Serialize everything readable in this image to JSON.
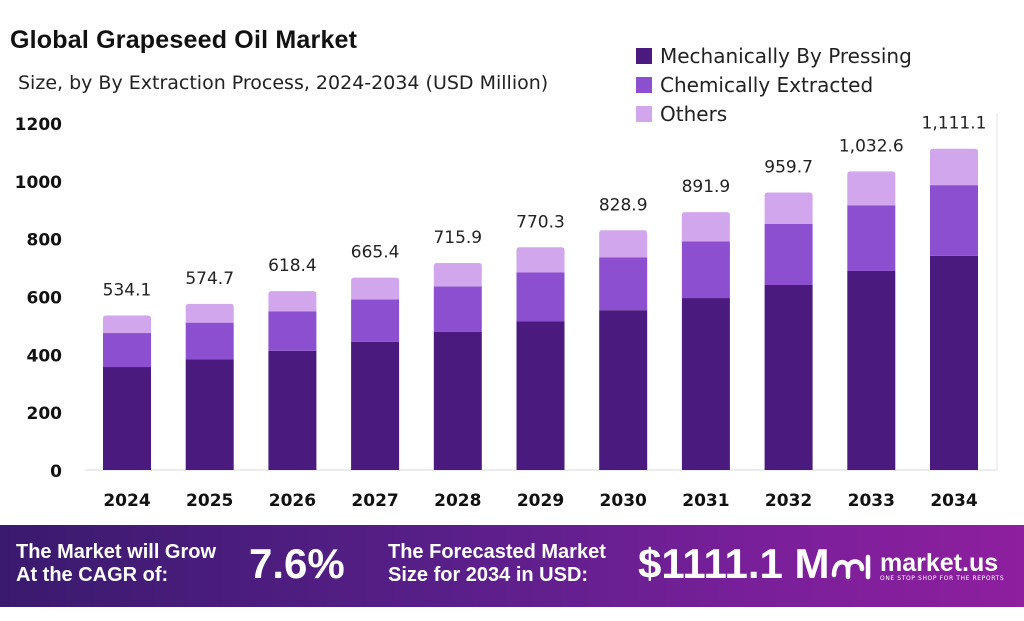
{
  "header": {
    "title": "Global Grapeseed Oil Market",
    "subtitle": "Size, by By Extraction Process, 2024-2034 (USD Million)"
  },
  "legend": [
    {
      "label": "Mechanically By Pressing",
      "color": "#4a1a7e"
    },
    {
      "label": "Chemically Extracted",
      "color": "#8c4fcf"
    },
    {
      "label": "Others",
      "color": "#d2a6ec"
    }
  ],
  "chart_data": {
    "type": "bar",
    "stacked": true,
    "categories": [
      "2024",
      "2025",
      "2026",
      "2027",
      "2028",
      "2029",
      "2030",
      "2031",
      "2032",
      "2033",
      "2034"
    ],
    "series": [
      {
        "name": "Mechanically By Pressing",
        "values": [
          356.1,
          383.2,
          412.3,
          443.6,
          477.3,
          513.5,
          552.6,
          594.6,
          639.8,
          688.4,
          740.7
        ]
      },
      {
        "name": "Chemically Extracted",
        "values": [
          117.5,
          126.4,
          136.0,
          146.4,
          157.5,
          169.5,
          182.4,
          196.2,
          211.1,
          227.2,
          244.4
        ]
      },
      {
        "name": "Others",
        "values": [
          60.5,
          65.1,
          70.1,
          75.4,
          81.1,
          87.3,
          93.9,
          101.1,
          108.8,
          117.0,
          126.0
        ]
      }
    ],
    "totals": [
      534.1,
      574.7,
      618.4,
      665.4,
      715.9,
      770.3,
      828.9,
      891.9,
      959.7,
      1032.6,
      1111.1
    ],
    "total_labels": [
      "534.1",
      "574.7",
      "618.4",
      "665.4",
      "715.9",
      "770.3",
      "828.9",
      "891.9",
      "959.7",
      "1,032.6",
      "1,111.1"
    ],
    "yticks": [
      "0",
      "200",
      "400",
      "600",
      "800",
      "1000",
      "1200"
    ],
    "ylim": [
      0,
      1200
    ],
    "grid": false,
    "legend_position": "top-right"
  },
  "footer": {
    "cagr_label_1": "The Market will Grow",
    "cagr_label_2": "At the CAGR of:",
    "cagr_value": "7.6%",
    "forecast_label_1": "The Forecasted Market",
    "forecast_label_2": "Size for 2034 in USD:",
    "forecast_value": "$1111.1 M",
    "brand_name": "market.us",
    "brand_tagline": "ONE STOP SHOP FOR THE REPORTS"
  }
}
